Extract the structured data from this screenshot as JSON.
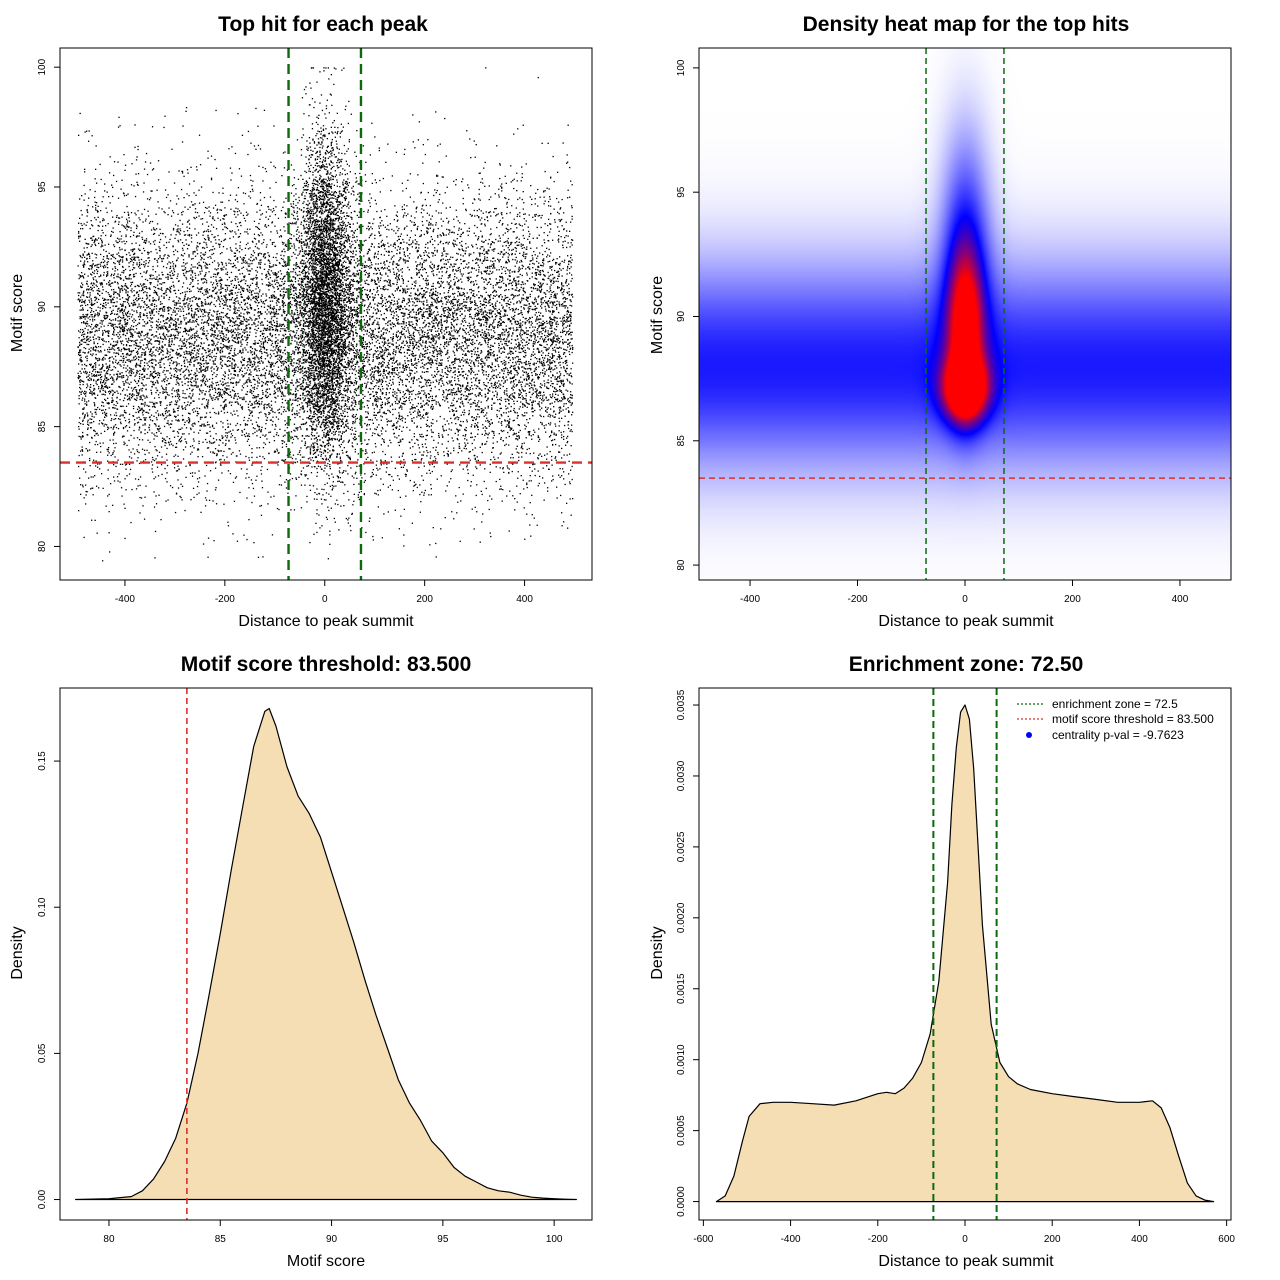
{
  "figure": {
    "panel_count": 4
  },
  "chart_data": [
    {
      "id": "scatter",
      "type": "scatter",
      "title": "Top hit for each peak",
      "xlabel": "Distance to peak summit",
      "ylabel": "Motif score",
      "xlim": [
        -530,
        535
      ],
      "ylim": [
        78.6,
        100.8
      ],
      "xticks": [
        -400,
        -200,
        0,
        200,
        400
      ],
      "yticks": [
        80,
        85,
        90,
        95,
        100
      ],
      "grid": false,
      "point_color": "#000000",
      "point_model": {
        "x_range": [
          -495,
          495
        ],
        "background": {
          "n": 15000,
          "y_mean": 88.8,
          "y_sd": 3.0
        },
        "central": {
          "n": 4500,
          "x_sd": 26,
          "y_mean": 90.5,
          "y_sd": 3.3
        },
        "y_floor": 79.3,
        "y_cap": 100
      },
      "vlines": [
        {
          "x": -72.5,
          "color": "#0b6b0b",
          "style": "dashed"
        },
        {
          "x": 72.5,
          "color": "#0b6b0b",
          "style": "dashed"
        }
      ],
      "hlines": [
        {
          "y": 83.5,
          "color": "#d9302c",
          "style": "dashed"
        }
      ]
    },
    {
      "id": "heatmap",
      "type": "heatmap",
      "title": "Density heat map for the top hits",
      "xlabel": "Distance to peak summit",
      "ylabel": "Motif score",
      "xlim": [
        -495,
        495
      ],
      "ylim": [
        79.4,
        100.8
      ],
      "xticks": [
        -400,
        -200,
        0,
        200,
        400
      ],
      "yticks": [
        80,
        85,
        90,
        95,
        100
      ],
      "colors": {
        "low": "#ffffff",
        "mid": "#0000ff",
        "high": "#ff0000"
      },
      "density_model": {
        "background": {
          "weight": 0.45,
          "y_mean": 88,
          "y_sd": 2.9
        },
        "central": [
          {
            "weight": 1.0,
            "x_sd": 28,
            "y_mean": 87.1,
            "y_sd": 0.85
          },
          {
            "weight": 0.72,
            "x_sd": 22,
            "y_mean": 89.5,
            "y_sd": 2.1
          },
          {
            "weight": 0.4,
            "x_sd": 32,
            "y_mean": 93.0,
            "y_sd": 3.2
          }
        ]
      },
      "vlines": [
        {
          "x": -72.5,
          "color": "#0b6b0b",
          "style": "dashed"
        },
        {
          "x": 72.5,
          "color": "#0b6b0b",
          "style": "dashed"
        }
      ],
      "hlines": [
        {
          "y": 83.5,
          "color": "#d9302c",
          "style": "dashed"
        }
      ]
    },
    {
      "id": "score-density",
      "type": "area",
      "title": "Motif score threshold: 83.500",
      "xlabel": "Motif score",
      "ylabel": "Density",
      "xlim": [
        77.8,
        101.7
      ],
      "ylim": [
        -0.007,
        0.175
      ],
      "xticks": [
        80,
        85,
        90,
        95,
        100
      ],
      "yticks": [
        0.0,
        0.05,
        0.1,
        0.15
      ],
      "ytick_labels": [
        "0.00",
        "0.05",
        "0.10",
        "0.15"
      ],
      "fill_color": "#f5deb3",
      "x": [
        78.5,
        80,
        81,
        81.5,
        82,
        82.5,
        83,
        83.5,
        84,
        84.5,
        85,
        85.5,
        86,
        86.5,
        87,
        87.2,
        87.5,
        88,
        88.5,
        89,
        89.5,
        90,
        90.5,
        91,
        91.5,
        92,
        92.5,
        93,
        93.5,
        94,
        94.5,
        95,
        95.5,
        96,
        96.5,
        97,
        97.5,
        98,
        98.5,
        99,
        99.5,
        100,
        100.5,
        101
      ],
      "values": [
        0.0,
        0.0003,
        0.001,
        0.003,
        0.007,
        0.013,
        0.021,
        0.033,
        0.05,
        0.07,
        0.091,
        0.113,
        0.134,
        0.155,
        0.167,
        0.168,
        0.162,
        0.148,
        0.138,
        0.132,
        0.124,
        0.112,
        0.1,
        0.088,
        0.075,
        0.063,
        0.052,
        0.041,
        0.033,
        0.027,
        0.02,
        0.016,
        0.011,
        0.008,
        0.006,
        0.004,
        0.003,
        0.0025,
        0.0015,
        0.0008,
        0.0005,
        0.0003,
        0.0001,
        0.0
      ],
      "vlines": [
        {
          "x": 83.5,
          "color": "#d9302c",
          "style": "dashed"
        }
      ]
    },
    {
      "id": "distance-density",
      "type": "area",
      "title": "Enrichment zone: 72.50",
      "xlabel": "Distance to peak summit",
      "ylabel": "Density",
      "xlim": [
        -610,
        610
      ],
      "ylim": [
        -0.00013,
        0.00362
      ],
      "xticks": [
        -600,
        -400,
        -200,
        0,
        200,
        400,
        600
      ],
      "yticks": [
        0.0,
        0.0005,
        0.001,
        0.0015,
        0.002,
        0.0025,
        0.003,
        0.0035
      ],
      "ytick_labels": [
        "0.0000",
        "0.0005",
        "0.0010",
        "0.0015",
        "0.0020",
        "0.0025",
        "0.0030",
        "0.0035"
      ],
      "fill_color": "#f5deb3",
      "x": [
        -570,
        -550,
        -530,
        -510,
        -495,
        -470,
        -440,
        -400,
        -350,
        -300,
        -250,
        -200,
        -180,
        -160,
        -140,
        -120,
        -100,
        -80,
        -60,
        -40,
        -30,
        -20,
        -10,
        0,
        10,
        20,
        30,
        40,
        60,
        80,
        100,
        120,
        150,
        200,
        250,
        300,
        350,
        400,
        430,
        450,
        470,
        490,
        510,
        530,
        550,
        570
      ],
      "values": [
        0.0,
        4e-05,
        0.00018,
        0.00043,
        0.0006,
        0.00069,
        0.0007,
        0.0007,
        0.00069,
        0.00068,
        0.00071,
        0.00076,
        0.00077,
        0.00076,
        0.0008,
        0.00087,
        0.00098,
        0.00118,
        0.00155,
        0.00225,
        0.0028,
        0.0032,
        0.00345,
        0.0035,
        0.0034,
        0.00305,
        0.0025,
        0.00195,
        0.00125,
        0.00098,
        0.00088,
        0.00083,
        0.00079,
        0.00076,
        0.00074,
        0.00072,
        0.0007,
        0.0007,
        0.00071,
        0.00066,
        0.00052,
        0.00032,
        0.00013,
        4e-05,
        1e-05,
        0.0
      ],
      "vlines": [
        {
          "x": -72.5,
          "color": "#0b6b0b",
          "style": "dashed"
        },
        {
          "x": 72.5,
          "color": "#0b6b0b",
          "style": "dashed"
        }
      ],
      "legend": {
        "placement": "top-right",
        "entries": [
          {
            "label": "enrichment zone = 72.5",
            "type": "line",
            "color": "#0b6b0b",
            "style": "dotted"
          },
          {
            "label": "motif score threshold = 83.500",
            "type": "line",
            "color": "#d9302c",
            "style": "dotted"
          },
          {
            "label": "centrality p-val = -9.7623",
            "type": "point",
            "color": "#0000ff"
          }
        ]
      }
    }
  ]
}
